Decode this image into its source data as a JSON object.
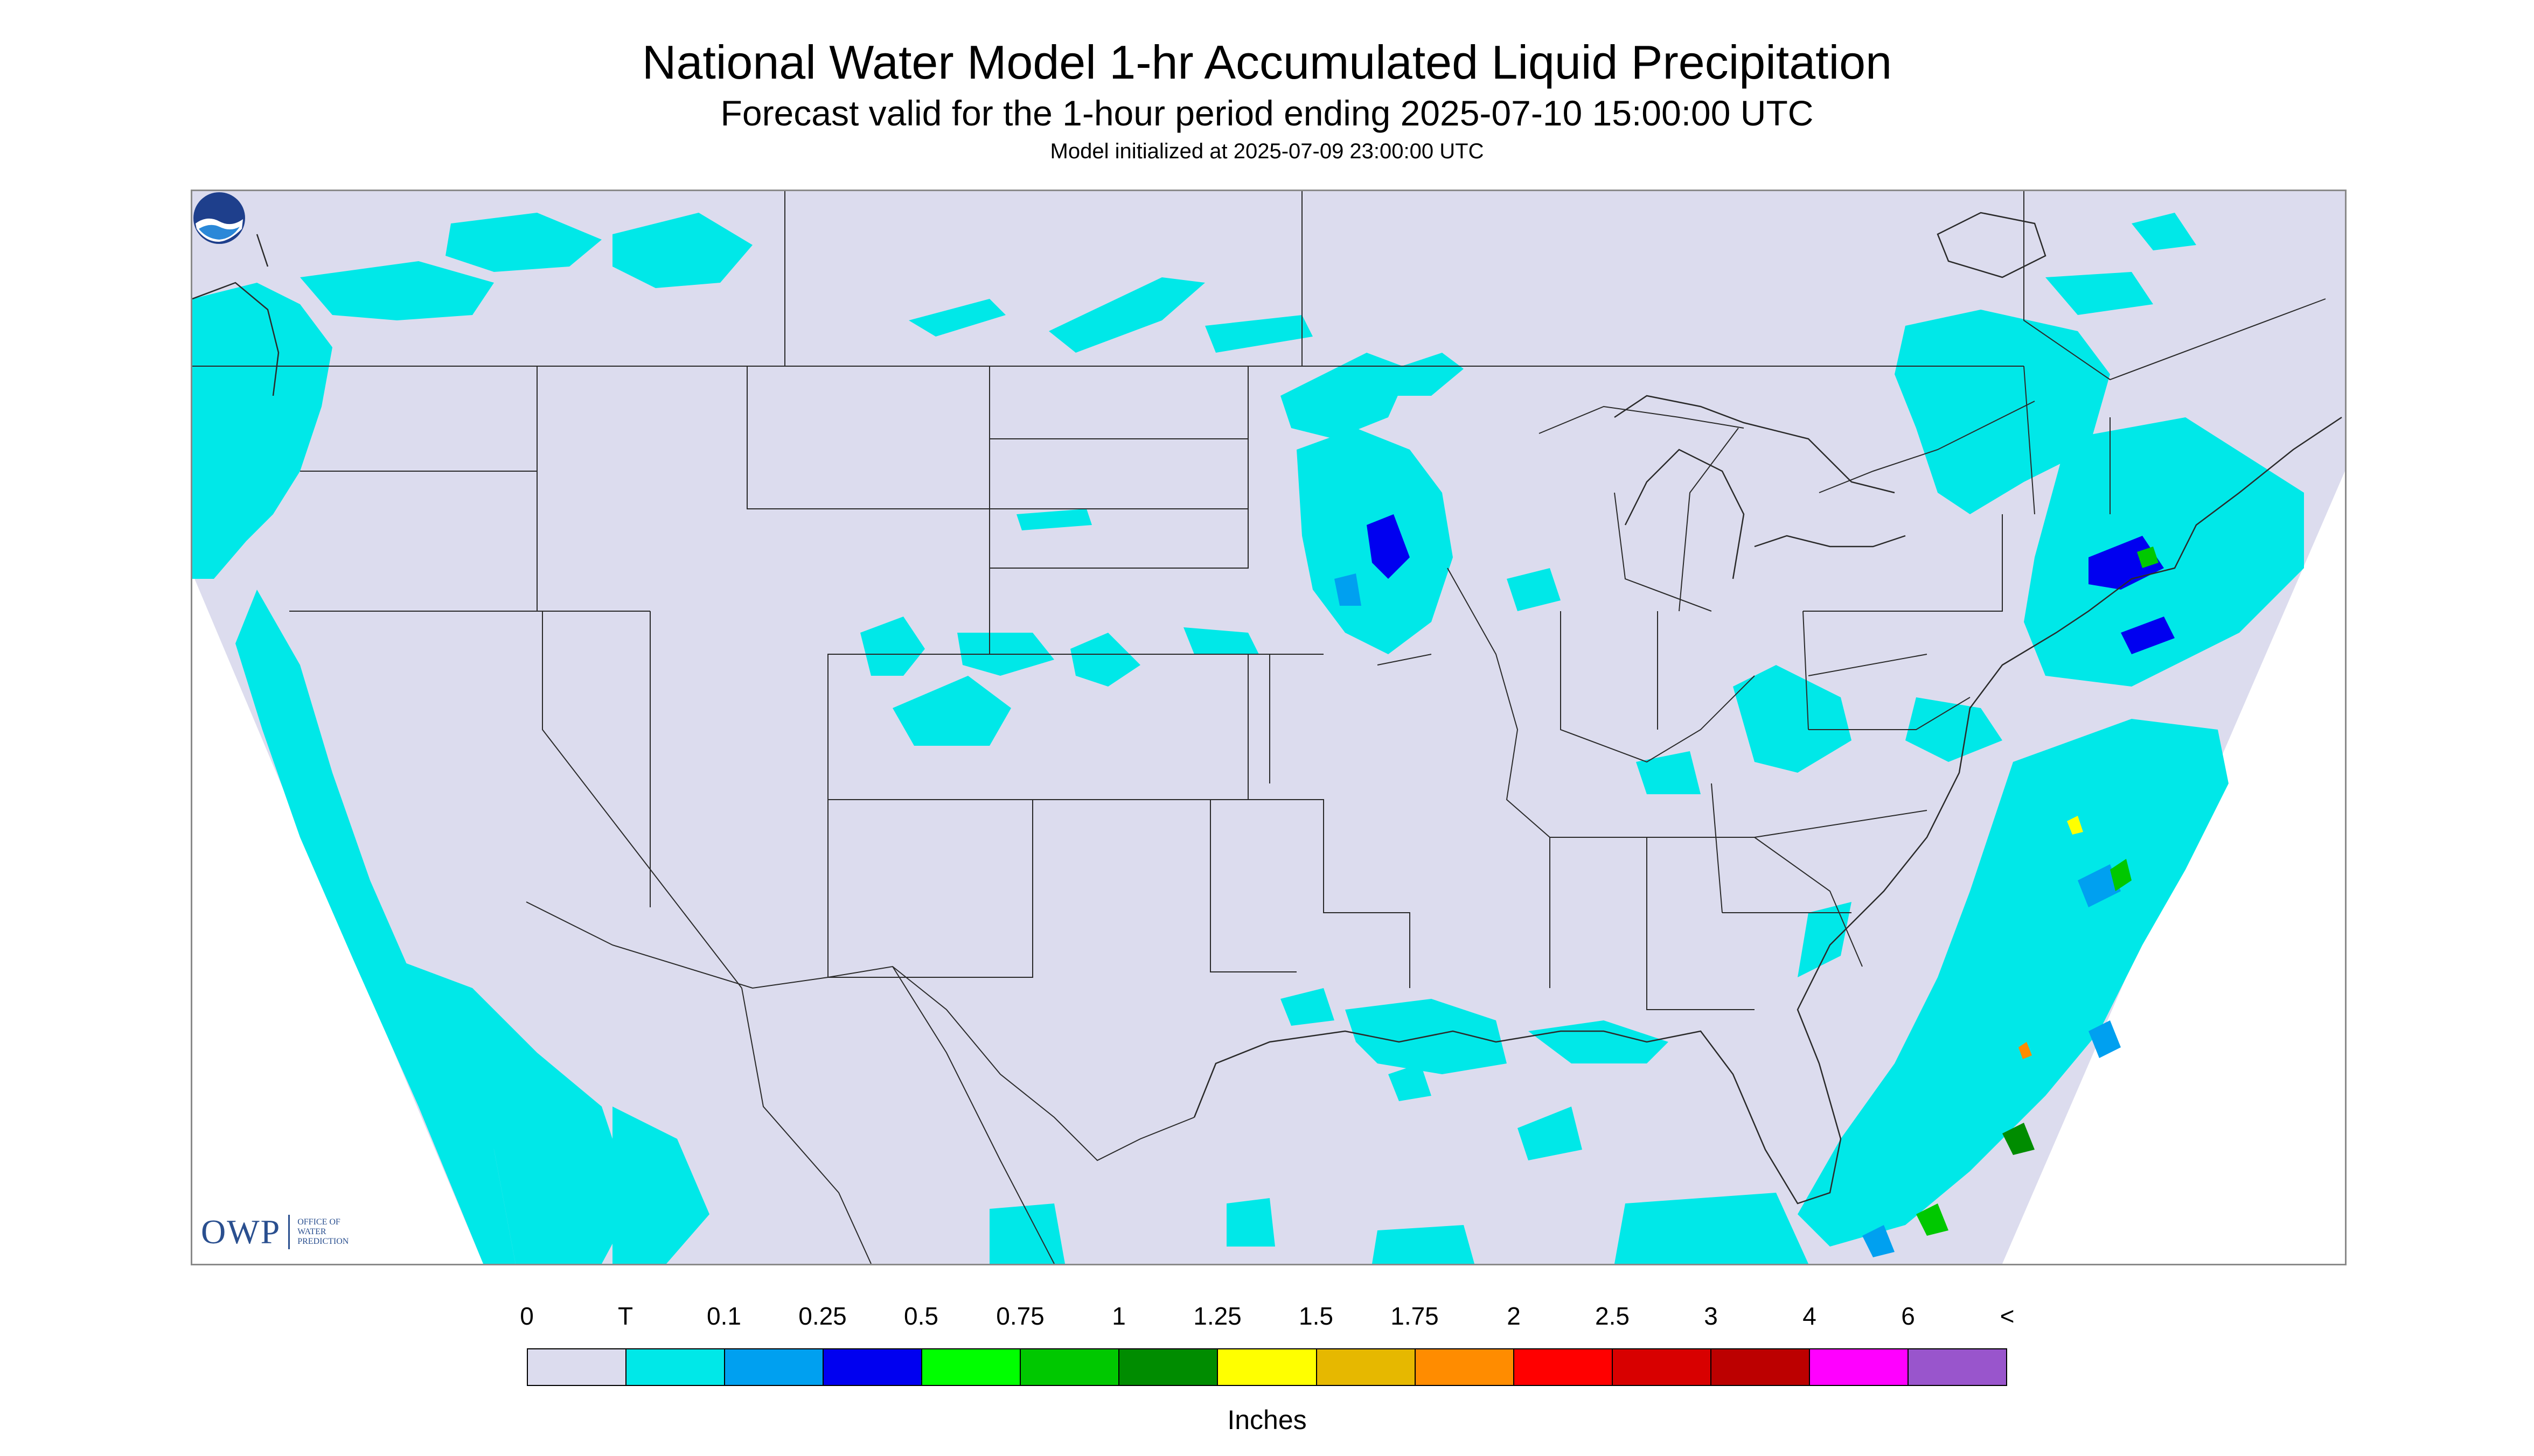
{
  "header": {
    "title": "National Water Model 1-hr Accumulated Liquid Precipitation",
    "subtitle": "Forecast valid for the 1-hour period ending 2025-07-10 15:00:00 UTC",
    "init": "Model initialized at 2025-07-09 23:00:00 UTC"
  },
  "map": {
    "background_color": "#dcdcee",
    "boundary_color": "#2a2a2a",
    "logos": {
      "owp_main": "OWP",
      "owp_sub": [
        "OFFICE OF",
        "WATER",
        "PREDICTION"
      ],
      "noaa_icon": "noaa-logo-icon"
    }
  },
  "legend": {
    "ticks": [
      "0",
      "T",
      "0.1",
      "0.25",
      "0.5",
      "0.75",
      "1",
      "1.25",
      "1.5",
      "1.75",
      "2",
      "2.5",
      "3",
      "4",
      "6",
      "<"
    ],
    "colors": [
      "#dcdcee",
      "#00e8e8",
      "#00a0f0",
      "#0000f0",
      "#00ff00",
      "#00c800",
      "#008c00",
      "#ffff00",
      "#e6b800",
      "#ff8c00",
      "#ff0000",
      "#d80000",
      "#bc0000",
      "#ff00ff",
      "#9955cc"
    ],
    "units": "Inches"
  }
}
